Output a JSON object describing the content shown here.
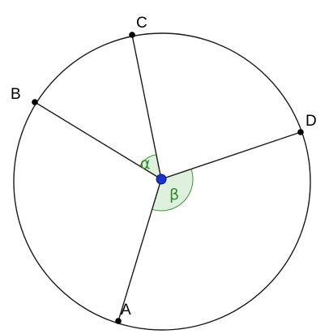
{
  "diagram": {
    "points": [
      {
        "id": "A",
        "label": "A"
      },
      {
        "id": "B",
        "label": "B"
      },
      {
        "id": "C",
        "label": "C"
      },
      {
        "id": "D",
        "label": "D"
      }
    ],
    "angles": [
      {
        "id": "alpha",
        "label": "α",
        "between": [
          "B",
          "C"
        ]
      },
      {
        "id": "beta",
        "label": "β",
        "between": [
          "D",
          "A"
        ]
      }
    ],
    "colors": {
      "circle": "#1a1a1a",
      "segments": "#1a1a1a",
      "points": "#000000",
      "center": "#1a33cc",
      "angle_fill": "#dff0df",
      "angle_stroke": "#339933",
      "angle_text": "#2e8b2e"
    }
  }
}
